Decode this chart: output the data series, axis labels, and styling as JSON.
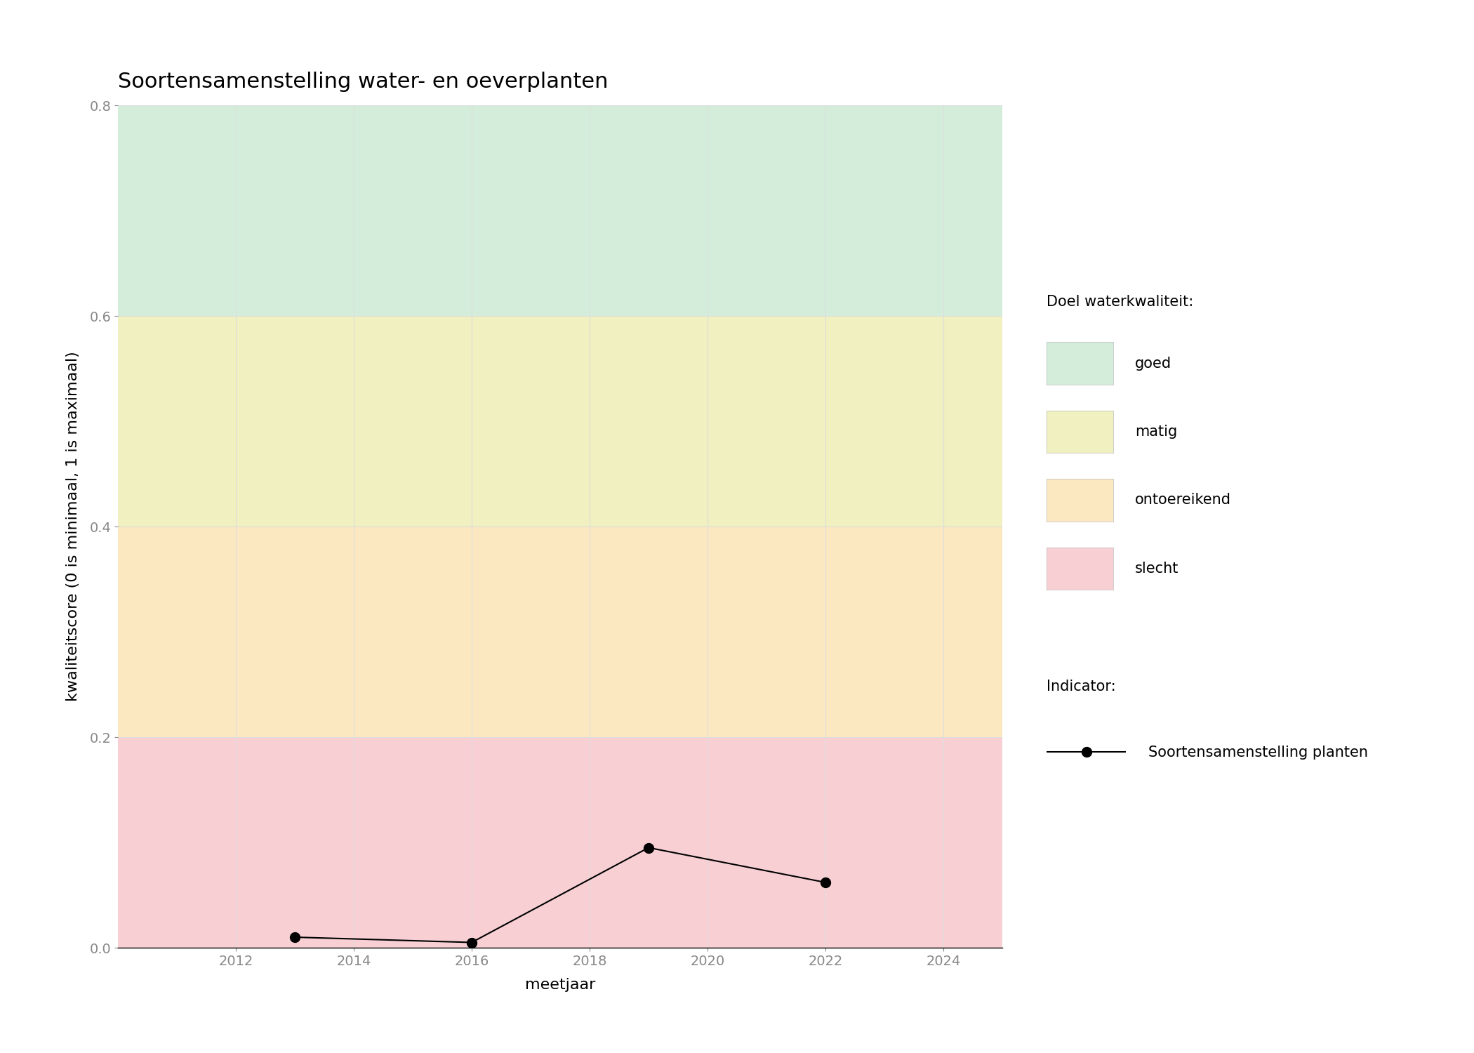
{
  "title": "Soortensamenstelling water- en oeverplanten",
  "xlabel": "meetjaar",
  "ylabel": "kwaliteitscore (0 is minimaal, 1 is maximaal)",
  "xlim": [
    2010,
    2025
  ],
  "ylim": [
    0,
    0.8
  ],
  "xticks": [
    2012,
    2014,
    2016,
    2018,
    2020,
    2022,
    2024
  ],
  "yticks": [
    0.0,
    0.2,
    0.4,
    0.6,
    0.8
  ],
  "data_x": [
    2013,
    2016,
    2019,
    2022
  ],
  "data_y": [
    0.01,
    0.005,
    0.095,
    0.062
  ],
  "bg_colors": [
    {
      "label": "goed",
      "color": "#d4edda",
      "ymin": 0.6,
      "ymax": 0.8
    },
    {
      "label": "matig",
      "color": "#f0f0c0",
      "ymin": 0.4,
      "ymax": 0.6
    },
    {
      "label": "ontoereikend",
      "color": "#fce8c0",
      "ymin": 0.2,
      "ymax": 0.4
    },
    {
      "label": "slecht",
      "color": "#f8d0d4",
      "ymin": 0.0,
      "ymax": 0.2
    }
  ],
  "legend_doel_title": "Doel waterkwaliteit:",
  "legend_indicator_title": "Indicator:",
  "legend_indicator_label": "Soortensamenstelling planten",
  "line_color": "#000000",
  "marker_color": "#000000",
  "marker_size": 10,
  "line_width": 1.5,
  "title_fontsize": 22,
  "label_fontsize": 16,
  "tick_fontsize": 14,
  "legend_fontsize": 15,
  "legend_title_fontsize": 15,
  "background_color": "#ffffff",
  "grid_color": "#dddddd",
  "tick_color": "#888888"
}
